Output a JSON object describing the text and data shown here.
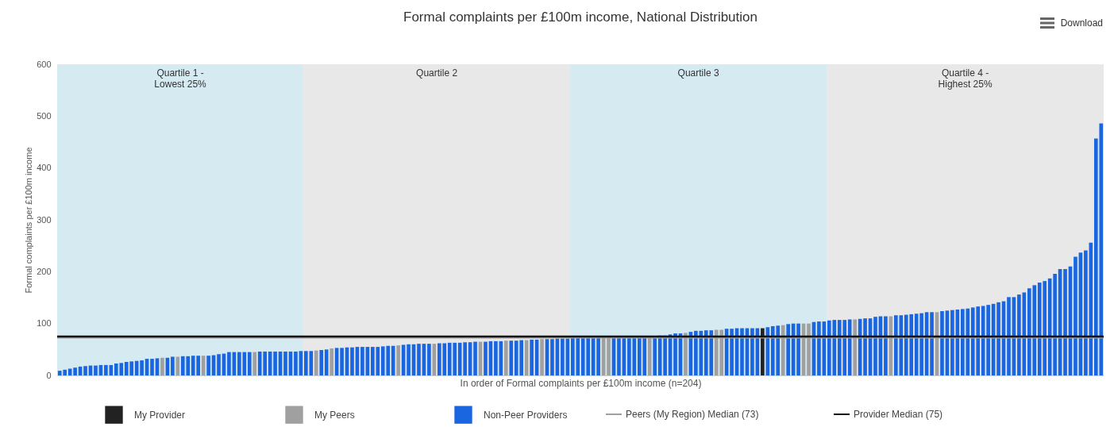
{
  "chart_data": {
    "type": "bar",
    "title": "Formal complaints per £100m income, National Distribution",
    "xlabel": "In order of Formal complaints per £100m income (n=204)",
    "ylabel": "Formal complaints per £100m income",
    "annotations": [
      "Quartile 1 -\nLowest 25%",
      "Quartile 2",
      "Quartile 3",
      "Quartile 4 -\nHighest 25%",
      "Download"
    ],
    "categories": [
      null,
      null,
      null,
      null,
      null,
      null,
      null,
      null,
      null,
      null,
      null,
      null,
      null,
      null,
      null,
      null,
      null,
      null,
      null,
      null,
      null,
      null,
      null,
      null,
      null,
      null,
      null,
      null,
      null,
      null,
      null,
      null,
      null,
      null,
      null,
      null,
      null,
      null,
      null,
      null,
      null,
      null,
      null,
      null,
      null,
      null,
      null,
      null,
      null,
      null,
      null,
      null,
      null,
      null,
      null,
      null,
      null,
      null,
      null,
      null,
      null,
      null,
      null,
      null,
      null,
      null,
      null,
      null,
      null,
      null,
      null,
      null,
      null,
      null,
      null,
      null,
      null,
      null,
      null,
      null,
      null,
      null,
      null,
      null,
      null,
      null,
      null,
      null,
      null,
      null,
      null,
      null,
      null,
      null,
      null,
      null,
      null,
      null,
      null,
      null,
      null,
      null,
      null,
      null,
      null,
      null,
      null,
      null,
      null,
      null,
      null,
      null,
      null,
      null,
      null,
      null,
      null,
      null,
      null,
      null,
      null,
      null,
      null,
      null,
      null,
      null,
      null,
      null,
      null,
      null,
      null,
      null,
      null,
      null,
      null,
      null,
      null,
      null,
      null,
      null,
      null,
      null,
      null,
      null,
      null,
      null,
      null,
      null,
      null,
      null,
      null,
      null,
      null,
      null,
      null,
      null,
      null,
      null,
      null,
      null,
      null,
      null,
      null,
      null,
      null,
      null,
      null,
      null,
      null,
      null,
      null,
      null,
      null,
      null,
      null,
      null,
      null,
      null,
      null,
      null,
      null,
      null,
      null,
      null,
      null,
      null,
      null,
      null,
      null,
      null,
      null,
      null,
      null,
      null,
      null,
      null,
      null,
      null,
      null,
      null,
      null,
      null,
      null,
      null
    ],
    "ylim": [
      0,
      600
    ],
    "yticks": [
      0,
      100,
      200,
      300,
      400,
      500,
      600
    ],
    "tick_labels": "y",
    "grid": "y",
    "stacked": true,
    "legend": "bottom",
    "series": [
      {
        "name": "My Provider",
        "color": "#222222",
        "values": [
          null,
          null,
          null,
          null,
          null,
          null,
          null,
          null,
          null,
          null,
          null,
          null,
          null,
          null,
          null,
          null,
          null,
          null,
          null,
          null,
          null,
          null,
          null,
          null,
          null,
          null,
          null,
          null,
          null,
          null,
          null,
          null,
          null,
          null,
          null,
          null,
          null,
          null,
          null,
          null,
          null,
          null,
          null,
          null,
          null,
          null,
          null,
          null,
          null,
          null,
          null,
          null,
          null,
          null,
          null,
          null,
          null,
          null,
          null,
          null,
          null,
          null,
          null,
          null,
          null,
          null,
          null,
          null,
          null,
          null,
          null,
          null,
          null,
          null,
          null,
          null,
          null,
          null,
          null,
          null,
          null,
          null,
          null,
          null,
          null,
          null,
          null,
          null,
          null,
          null,
          null,
          null,
          null,
          null,
          null,
          null,
          null,
          null,
          null,
          null,
          null,
          null,
          null,
          null,
          null,
          null,
          null,
          null,
          null,
          null,
          null,
          null,
          null,
          null,
          null,
          null,
          null,
          null,
          null,
          null,
          null,
          null,
          null,
          null,
          null,
          null,
          null,
          null,
          null,
          null,
          null,
          null,
          null,
          null,
          null,
          null,
          null,
          91,
          null,
          null,
          null,
          null,
          null,
          null,
          null,
          null,
          null,
          null,
          null,
          null,
          null,
          null,
          null,
          null,
          null,
          null,
          null,
          null,
          null,
          null,
          null,
          null,
          null,
          null,
          null,
          null,
          null,
          null,
          null,
          null,
          null,
          null,
          null,
          null,
          null,
          null,
          null,
          null,
          null,
          null,
          null,
          null,
          null,
          null,
          null,
          null,
          null,
          null,
          null,
          null,
          null,
          null,
          null,
          null,
          null,
          null,
          null,
          null,
          null,
          null,
          null,
          null,
          null,
          null
        ]
      },
      {
        "name": "My Peers",
        "color": "#a0a0a0",
        "values": [
          null,
          null,
          null,
          null,
          null,
          null,
          null,
          null,
          null,
          null,
          null,
          null,
          null,
          null,
          null,
          null,
          null,
          null,
          null,
          null,
          34,
          null,
          null,
          36,
          null,
          null,
          null,
          null,
          38,
          null,
          null,
          null,
          null,
          null,
          null,
          null,
          null,
          null,
          45,
          null,
          null,
          null,
          null,
          null,
          null,
          null,
          null,
          null,
          null,
          null,
          48,
          null,
          null,
          52,
          null,
          null,
          null,
          null,
          null,
          null,
          null,
          null,
          null,
          null,
          null,
          null,
          58,
          null,
          null,
          null,
          null,
          null,
          null,
          61,
          null,
          null,
          null,
          null,
          null,
          null,
          null,
          null,
          65,
          null,
          null,
          null,
          null,
          67,
          null,
          null,
          null,
          68,
          null,
          null,
          70,
          null,
          null,
          null,
          null,
          null,
          null,
          null,
          null,
          null,
          null,
          null,
          72,
          72,
          null,
          null,
          null,
          null,
          null,
          null,
          null,
          76,
          null,
          null,
          null,
          null,
          null,
          null,
          82,
          null,
          null,
          null,
          null,
          null,
          88,
          88,
          null,
          null,
          null,
          null,
          null,
          null,
          null,
          null,
          null,
          null,
          null,
          97,
          null,
          null,
          null,
          100,
          100,
          null,
          null,
          null,
          null,
          null,
          null,
          null,
          null,
          108,
          null,
          null,
          null,
          null,
          null,
          null,
          114,
          null,
          null,
          null,
          null,
          null,
          null,
          null,
          null,
          122,
          null,
          null,
          null,
          null,
          null,
          null,
          null,
          null,
          null,
          null,
          null,
          null,
          null,
          null,
          null,
          null,
          null,
          null,
          null,
          null,
          null,
          null,
          null,
          null,
          null,
          null,
          null,
          null,
          null,
          null,
          null,
          null
        ]
      },
      {
        "name": "Non-Peer Providers",
        "color": "#1a66e0",
        "values": [
          9,
          11,
          13,
          15,
          17,
          18,
          19,
          19,
          20,
          20,
          20,
          23,
          24,
          26,
          27,
          28,
          29,
          32,
          32,
          33,
          null,
          34,
          36,
          null,
          37,
          37,
          38,
          38,
          null,
          38,
          39,
          41,
          42,
          45,
          45,
          45,
          45,
          45,
          null,
          46,
          46,
          46,
          46,
          46,
          46,
          46,
          46,
          47,
          47,
          47,
          null,
          49,
          50,
          null,
          53,
          53,
          54,
          54,
          55,
          55,
          55,
          55,
          55,
          56,
          57,
          57,
          null,
          59,
          60,
          60,
          61,
          61,
          61,
          null,
          62,
          62,
          63,
          63,
          63,
          64,
          64,
          65,
          null,
          65,
          66,
          66,
          66,
          null,
          67,
          67,
          68,
          null,
          69,
          69,
          null,
          70,
          70,
          71,
          71,
          71,
          72,
          72,
          72,
          72,
          72,
          72,
          null,
          null,
          73,
          73,
          73,
          73,
          74,
          75,
          75,
          null,
          76,
          77,
          77,
          79,
          81,
          81,
          null,
          84,
          86,
          86,
          87,
          87,
          null,
          null,
          90,
          90,
          91,
          91,
          91,
          91,
          91,
          null,
          93,
          95,
          96,
          null,
          99,
          100,
          100,
          null,
          null,
          103,
          104,
          104,
          106,
          107,
          107,
          107,
          108,
          null,
          109,
          110,
          110,
          113,
          114,
          114,
          null,
          116,
          116,
          117,
          118,
          119,
          120,
          122,
          122,
          null,
          124,
          125,
          126,
          127,
          128,
          129,
          131,
          133,
          134,
          136,
          138,
          141,
          143,
          151,
          151,
          156,
          160,
          168,
          174,
          179,
          182,
          187,
          196,
          205,
          205,
          210,
          229,
          237,
          241,
          256,
          457,
          486
        ]
      }
    ],
    "ref_lines": [
      {
        "axis": "y",
        "value": 73,
        "label": "Peers (My Region) Median (73)",
        "color": "#a0a0a0",
        "line_style": "solid"
      },
      {
        "axis": "y",
        "value": 75,
        "label": "Provider Median (75)",
        "color": "#111111",
        "line_style": "solid"
      }
    ]
  }
}
